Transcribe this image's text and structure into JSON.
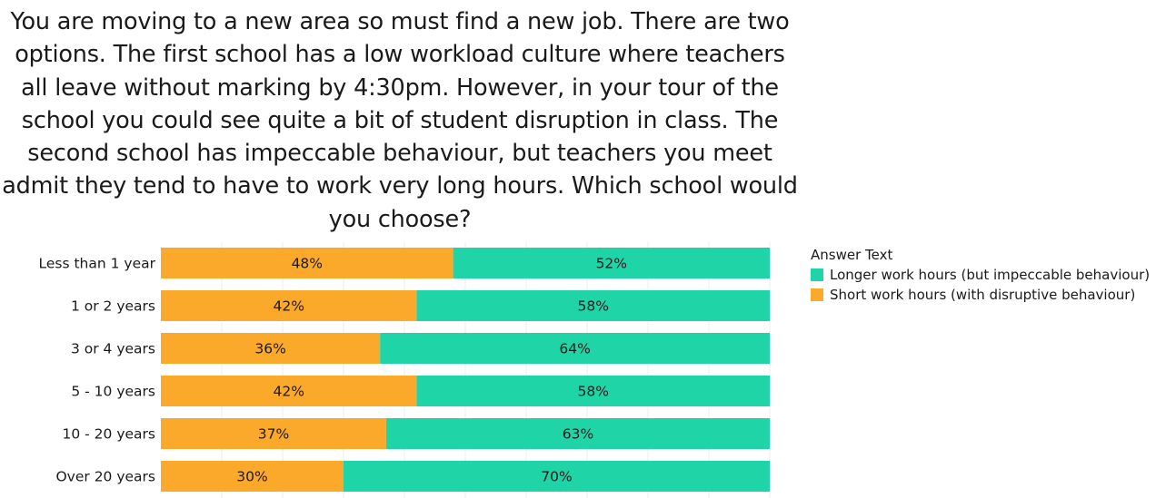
{
  "chart_data": {
    "type": "bar",
    "orientation": "horizontal",
    "stacked": true,
    "normalized": true,
    "title": "You are moving to a new area so must find a new job. There are two options. The first school has a low workload culture where teachers all leave without marking by 4:30pm. However, in your tour of the school you could see quite a bit of student disruption in class. The second school has impeccable behaviour, but teachers you meet admit they tend to have to work very long hours. Which school would you choose?",
    "categories": [
      "Less than 1 year",
      "1 or 2 years",
      "3 or 4 years",
      "5 - 10 years",
      "10 - 20 years",
      "Over 20 years"
    ],
    "series": [
      {
        "name": "Short work hours (with disruptive behaviour)",
        "color": "#FBA92A",
        "values": [
          48,
          42,
          36,
          42,
          37,
          30
        ]
      },
      {
        "name": "Longer work hours (but impeccable behaviour)",
        "color": "#1FD4A6",
        "values": [
          52,
          58,
          64,
          58,
          63,
          70
        ]
      }
    ],
    "data_label_suffix": "%",
    "legend": {
      "title": "Answer Text",
      "position": "right-top"
    },
    "grid": true,
    "xlim": [
      0,
      100
    ]
  }
}
